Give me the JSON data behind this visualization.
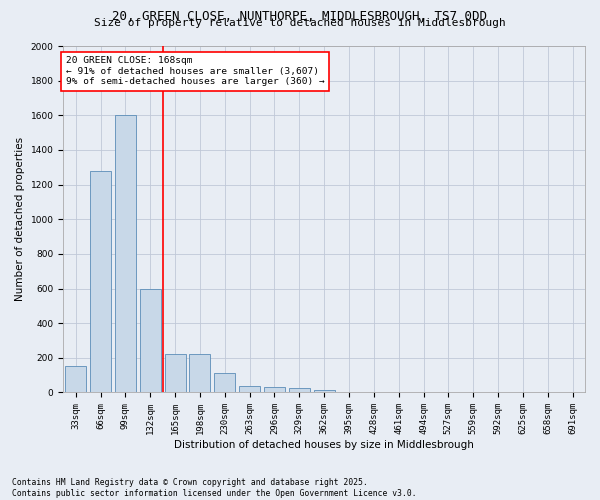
{
  "title_line1": "20, GREEN CLOSE, NUNTHORPE, MIDDLESBROUGH, TS7 0DD",
  "title_line2": "Size of property relative to detached houses in Middlesbrough",
  "xlabel": "Distribution of detached houses by size in Middlesbrough",
  "ylabel": "Number of detached properties",
  "categories": [
    "33sqm",
    "66sqm",
    "99sqm",
    "132sqm",
    "165sqm",
    "198sqm",
    "230sqm",
    "263sqm",
    "296sqm",
    "329sqm",
    "362sqm",
    "395sqm",
    "428sqm",
    "461sqm",
    "494sqm",
    "527sqm",
    "559sqm",
    "592sqm",
    "625sqm",
    "658sqm",
    "691sqm"
  ],
  "values": [
    150,
    1280,
    1600,
    600,
    220,
    220,
    115,
    35,
    30,
    25,
    15,
    5,
    2,
    1,
    1,
    0,
    0,
    0,
    0,
    0,
    0
  ],
  "bar_color": "#c8d8e8",
  "bar_edge_color": "#5b8db8",
  "grid_color": "#c0c8d8",
  "background_color": "#e8edf4",
  "vline_x_index": 4,
  "vline_color": "red",
  "annotation_text": "20 GREEN CLOSE: 168sqm\n← 91% of detached houses are smaller (3,607)\n9% of semi-detached houses are larger (360) →",
  "annotation_box_color": "white",
  "annotation_box_edge": "red",
  "ylim": [
    0,
    2000
  ],
  "yticks": [
    0,
    200,
    400,
    600,
    800,
    1000,
    1200,
    1400,
    1600,
    1800,
    2000
  ],
  "footer_line1": "Contains HM Land Registry data © Crown copyright and database right 2025.",
  "footer_line2": "Contains public sector information licensed under the Open Government Licence v3.0.",
  "title_fontsize": 9,
  "subtitle_fontsize": 8,
  "axis_label_fontsize": 7.5,
  "tick_fontsize": 6.5,
  "annotation_fontsize": 6.8,
  "footer_fontsize": 5.8
}
